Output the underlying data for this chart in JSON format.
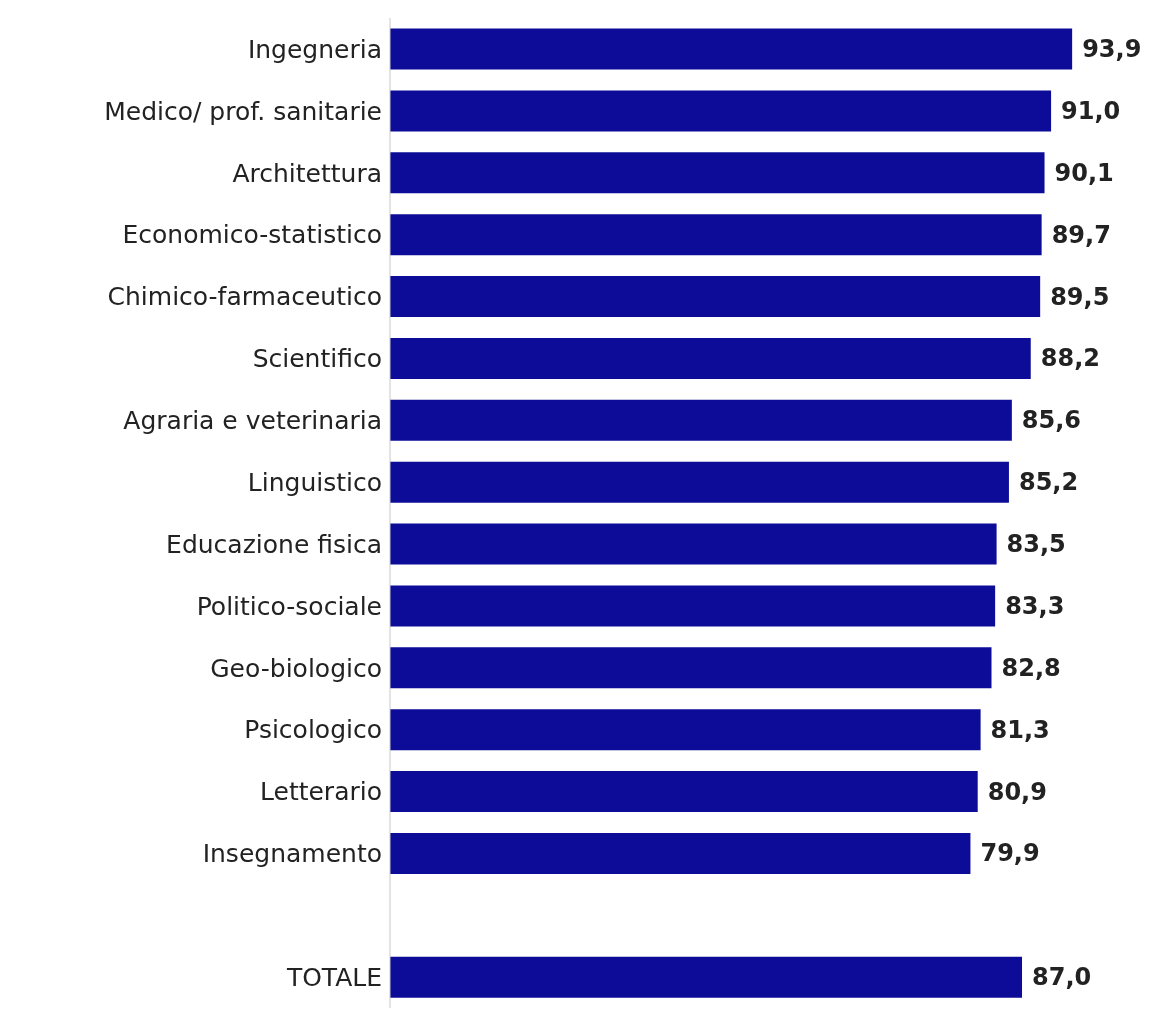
{
  "chart_data": {
    "type": "bar",
    "orientation": "horizontal",
    "categories": [
      "Ingegneria",
      "Medico/ prof. sanitarie",
      "Architettura",
      "Economico-statistico",
      "Chimico-farmaceutico",
      "Scientifico",
      "Agraria e veterinaria",
      "Linguistico",
      "Educazione fisica",
      "Politico-sociale",
      "Geo-biologico",
      "Psicologico",
      "Letterario",
      "Insegnamento",
      null,
      "TOTALE"
    ],
    "values": [
      93.9,
      91.0,
      90.1,
      89.7,
      89.5,
      88.2,
      85.6,
      85.2,
      83.5,
      83.3,
      82.8,
      81.3,
      80.9,
      79.9,
      null,
      87.0
    ],
    "value_labels": [
      "93,9",
      "91,0",
      "90,1",
      "89,7",
      "89,5",
      "88,2",
      "85,6",
      "85,2",
      "83,5",
      "83,3",
      "82,8",
      "81,3",
      "80,9",
      "79,9",
      null,
      "87,0"
    ],
    "color": "#0c0c98"
  }
}
